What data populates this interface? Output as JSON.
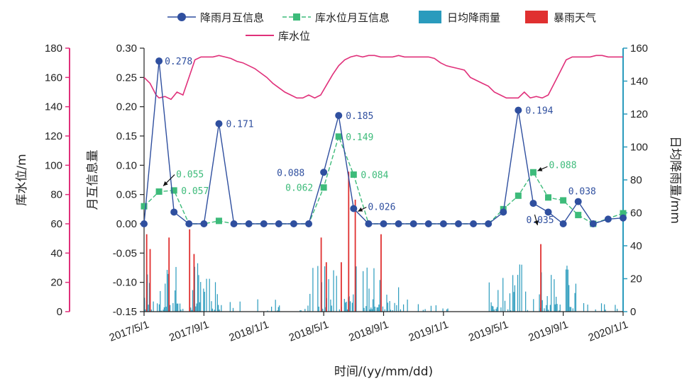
{
  "chart_data": {
    "type": "line",
    "xlabel": "时间/(yy/mm/dd)",
    "x_ticks": [
      "2017/5/1",
      "2017/9/1",
      "2018/1/1",
      "2018/5/1",
      "2018/9/1",
      "2019/1/1",
      "2019/5/1",
      "2019/9/1",
      "2020/1/1"
    ],
    "axes": {
      "left_outer": {
        "label": "库水位/m",
        "range": [
          0,
          180
        ],
        "ticks": [
          "0",
          "20",
          "40",
          "60",
          "80",
          "100",
          "120",
          "140",
          "160",
          "180"
        ],
        "color": "#e0307a"
      },
      "left_inner": {
        "label": "月互信息量",
        "range": [
          -0.15,
          0.3
        ],
        "ticks": [
          "-0.15",
          "-0.10",
          "-0.05",
          "0.00",
          "0.05",
          "0.10",
          "0.15",
          "0.20",
          "0.25",
          "0.30"
        ]
      },
      "right": {
        "label": "日均降雨量/mm",
        "range": [
          0,
          160
        ],
        "ticks": [
          "0",
          "20",
          "40",
          "60",
          "80",
          "100",
          "120",
          "140",
          "160"
        ],
        "color": "#2a9bbd"
      }
    },
    "legend": [
      {
        "name": "降雨月互信息",
        "color": "#2f4f9f",
        "marker": "circle"
      },
      {
        "name": "库水位月互信息",
        "color": "#3dbb7a",
        "marker": "square"
      },
      {
        "name": "日均降雨量",
        "color": "#2a9bbd",
        "marker": "box"
      },
      {
        "name": "暴雨天气",
        "color": "#e03030",
        "marker": "box"
      },
      {
        "name": "库水位",
        "color": "#e0307a",
        "marker": "line"
      }
    ],
    "series": [
      {
        "name": "降雨月互信息",
        "x": [
          "2017/5",
          "2017/6",
          "2017/7",
          "2017/8",
          "2017/9",
          "2017/10",
          "2017/11",
          "2017/12",
          "2018/1",
          "2018/2",
          "2018/3",
          "2018/4",
          "2018/5",
          "2018/6",
          "2018/7",
          "2018/8",
          "2018/9",
          "2018/10",
          "2018/11",
          "2018/12",
          "2019/1",
          "2019/2",
          "2019/3",
          "2019/4",
          "2019/5",
          "2019/6",
          "2019/7",
          "2019/8",
          "2019/9",
          "2019/10",
          "2019/11",
          "2019/12",
          "2020/1"
        ],
        "values": [
          0,
          0.278,
          0.02,
          0,
          0,
          0.171,
          0,
          0,
          0,
          0,
          0,
          0,
          0.088,
          0.185,
          0.026,
          0,
          0,
          0,
          0,
          0,
          0,
          0,
          0,
          0,
          0.02,
          0.194,
          0.035,
          0.02,
          0,
          0.038,
          0,
          0.008,
          0.01
        ]
      },
      {
        "name": "库水位月互信息",
        "x": [
          "2017/5",
          "2017/6",
          "2017/7",
          "2018/10",
          "2018/5",
          "2018/6",
          "2018/7",
          "2019/5",
          "2019/6",
          "2019/7",
          "2019/8",
          "2019/9",
          "2019/10",
          "2019/11",
          "2019/12"
        ],
        "values": [
          0.03,
          0.055,
          0.057,
          0.005,
          0.062,
          0.149,
          0.084,
          0.025,
          0.048,
          0.088,
          0.045,
          0.04,
          0.015,
          0,
          0.018
        ],
        "_x_index": [
          0,
          1,
          2,
          5,
          12,
          13,
          14,
          24,
          25,
          26,
          27,
          28,
          29,
          30,
          32
        ]
      }
    ],
    "labels": [
      {
        "series": "降雨月互信息",
        "text": "0.278",
        "color": "#2f4f9f"
      },
      {
        "series": "降雨月互信息",
        "text": "0.171",
        "color": "#2f4f9f"
      },
      {
        "series": "降雨月互信息",
        "text": "0.088",
        "color": "#2f4f9f"
      },
      {
        "series": "降雨月互信息",
        "text": "0.185",
        "color": "#2f4f9f"
      },
      {
        "series": "降雨月互信息",
        "text": "0.026",
        "color": "#2f4f9f"
      },
      {
        "series": "降雨月互信息",
        "text": "0.194",
        "color": "#2f4f9f"
      },
      {
        "series": "降雨月互信息",
        "text": "0.035",
        "color": "#2f4f9f"
      },
      {
        "series": "降雨月互信息",
        "text": "0.038",
        "color": "#2f4f9f"
      },
      {
        "series": "库水位月互信息",
        "text": "0.055",
        "color": "#3dbb7a"
      },
      {
        "series": "库水位月互信息",
        "text": "0.057",
        "color": "#3dbb7a"
      },
      {
        "series": "库水位月互信息",
        "text": "0.062",
        "color": "#3dbb7a"
      },
      {
        "series": "库水位月互信息",
        "text": "0.149",
        "color": "#3dbb7a"
      },
      {
        "series": "库水位月互信息",
        "text": "0.084",
        "color": "#3dbb7a"
      },
      {
        "series": "库水位月互信息",
        "text": "0.088",
        "color": "#3dbb7a"
      }
    ],
    "water_level": {
      "name": "库水位",
      "x_month_index": [
        0,
        0.4,
        0.8,
        1.0,
        1.4,
        1.8,
        2.2,
        2.6,
        3.0,
        3.4,
        3.8,
        4.2,
        4.6,
        5.0,
        5.4,
        5.8,
        6.2,
        6.6,
        7.0,
        7.4,
        7.8,
        8.2,
        8.6,
        9.0,
        9.4,
        9.8,
        10.2,
        10.6,
        11.0,
        11.4,
        11.8,
        12.2,
        12.6,
        13.0,
        13.4,
        13.8,
        14.2,
        14.6,
        15.0,
        15.4,
        15.8,
        16.2,
        16.6,
        17.0,
        17.4,
        17.8,
        18.2,
        18.6,
        19.0,
        19.4,
        19.8,
        20.2,
        20.6,
        21.0,
        21.4,
        21.8,
        22.2,
        22.6,
        23.0,
        23.4,
        23.8,
        24.2,
        24.6,
        25.0,
        25.4,
        25.8,
        26.2,
        26.6,
        27.0,
        27.4,
        27.8,
        28.2,
        28.6,
        29.0,
        29.4,
        29.8,
        30.2,
        30.6,
        31.0,
        31.4,
        31.8,
        32.0
      ],
      "values": [
        160,
        156,
        148,
        146,
        147,
        145,
        150,
        148,
        160,
        172,
        174,
        174,
        174,
        175,
        174,
        173,
        171,
        170,
        168,
        166,
        163,
        160,
        156,
        153,
        150,
        148,
        146,
        146,
        148,
        146,
        148,
        155,
        162,
        168,
        172,
        174,
        175,
        174,
        175,
        175,
        174,
        174,
        174,
        175,
        174,
        174,
        174,
        174,
        174,
        173,
        170,
        168,
        167,
        166,
        165,
        160,
        158,
        156,
        154,
        150,
        148,
        146,
        146,
        146,
        150,
        146,
        147,
        146,
        148,
        156,
        164,
        172,
        174,
        174,
        174,
        174,
        175,
        175,
        174,
        174,
        174,
        174
      ]
    },
    "daily_rainfall": {
      "name": "日均降雨量",
      "units": "mm",
      "sampling_note": "illustrative daily bars following seasonal pattern"
    },
    "rainstorm": {
      "name": "暴雨天气",
      "events": [
        {
          "date": "2017/5/5",
          "value": 47
        },
        {
          "date": "2017/5/12",
          "value": 38
        },
        {
          "date": "2017/6/20",
          "value": 45
        },
        {
          "date": "2017/8/1",
          "value": 50
        },
        {
          "date": "2017/8/10",
          "value": 35
        },
        {
          "date": "2018/4/25",
          "value": 45
        },
        {
          "date": "2018/5/5",
          "value": 30
        },
        {
          "date": "2018/6/5",
          "value": 30
        },
        {
          "date": "2018/6/20",
          "value": 85
        },
        {
          "date": "2018/7/3",
          "value": 68
        },
        {
          "date": "2018/8/25",
          "value": 47
        },
        {
          "date": "2019/7/15",
          "value": 41
        }
      ]
    }
  }
}
